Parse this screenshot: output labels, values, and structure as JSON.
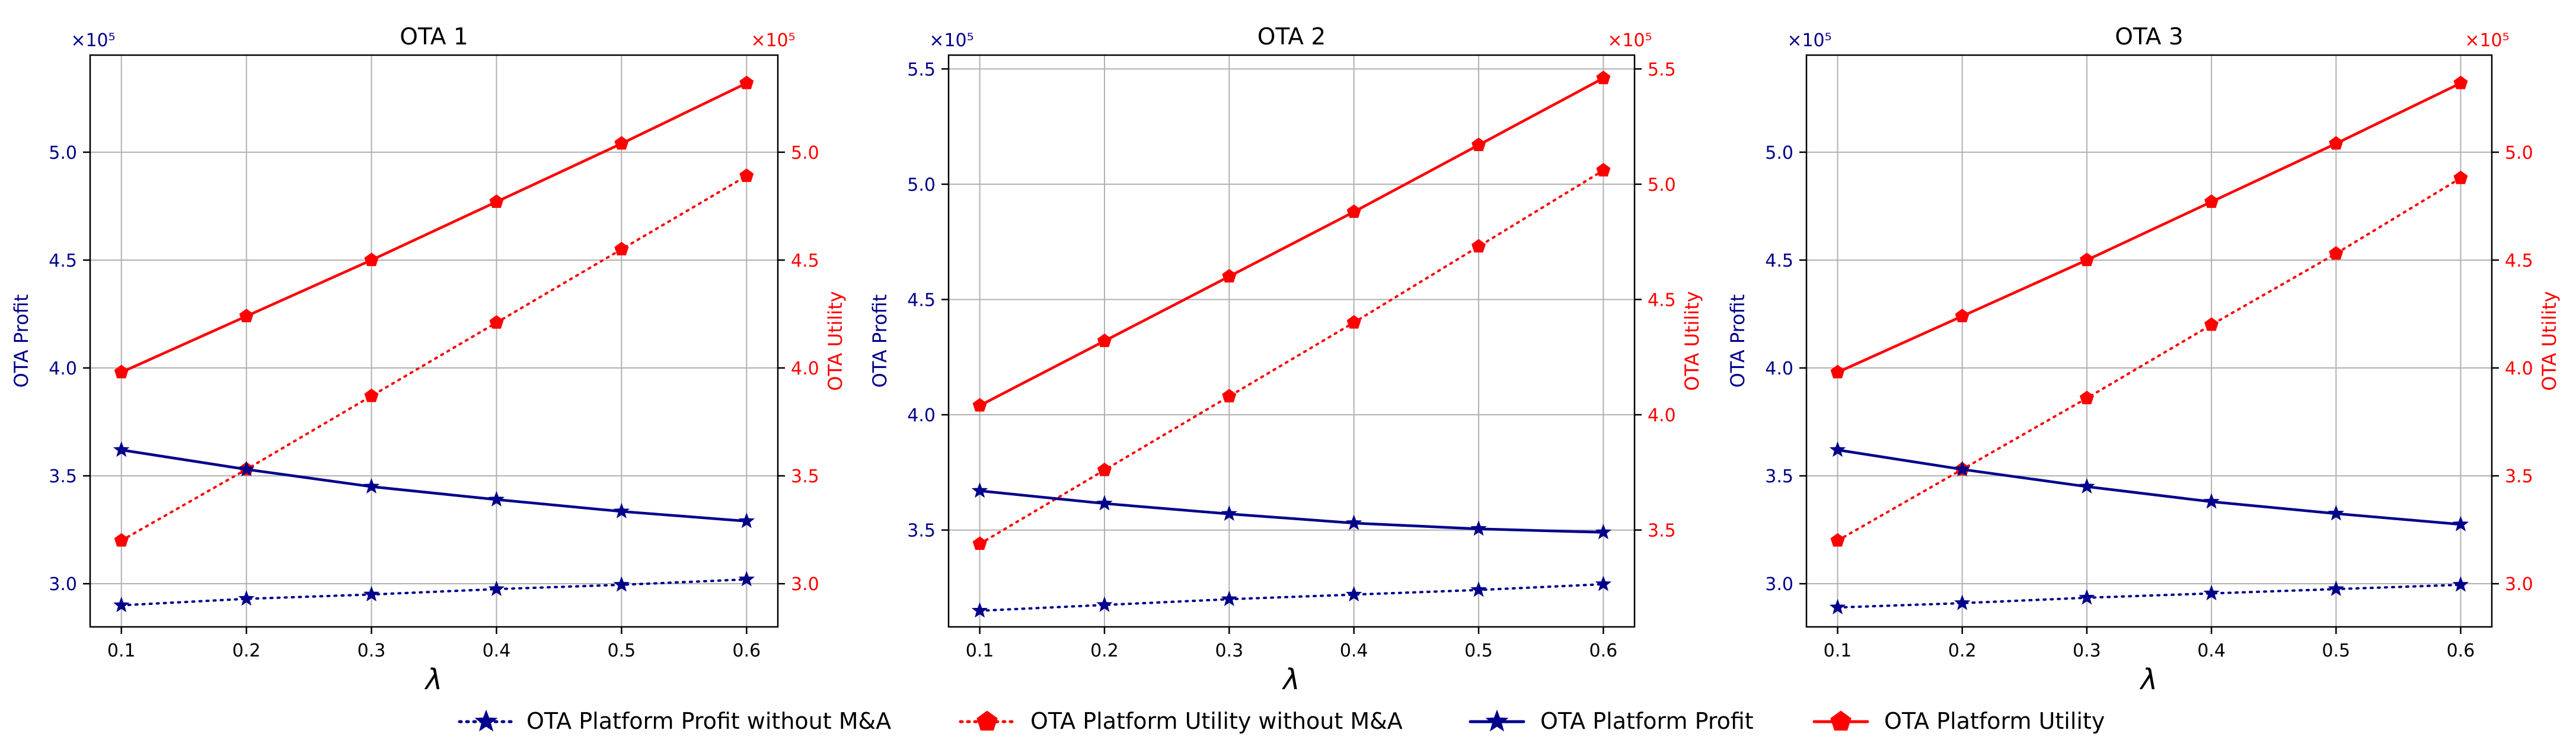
{
  "colors": {
    "profit": "#00008b",
    "utility": "#ff0000",
    "grid": "#b0b0b0",
    "axis": "#000000"
  },
  "legend_entries": [
    {
      "series": "profit_without",
      "label": "OTA Platform Profit without M&A"
    },
    {
      "series": "utility_without",
      "label": "OTA Platform Utility without M&A"
    },
    {
      "series": "profit",
      "label": "OTA Platform Profit"
    },
    {
      "series": "utility",
      "label": "OTA Platform Utility"
    }
  ],
  "chart_data": [
    {
      "type": "line",
      "title": "OTA 1",
      "xlabel": "λ",
      "ylabel_left": "OTA Profit",
      "ylabel_right": "OTA Utility",
      "left_multiplier": "×10⁵",
      "right_multiplier": "×10⁵",
      "x": [
        0.1,
        0.2,
        0.3,
        0.4,
        0.5,
        0.6
      ],
      "x_ticks": [
        0.1,
        0.2,
        0.3,
        0.4,
        0.5,
        0.6
      ],
      "xlim": [
        0.075,
        0.625
      ],
      "ylim_left": [
        2.8,
        5.45
      ],
      "ylim_right": [
        2.8,
        5.45
      ],
      "yticks_left": [
        3.0,
        3.5,
        4.0,
        4.5,
        5.0
      ],
      "yticks_right": [
        3.0,
        3.5,
        4.0,
        4.5,
        5.0
      ],
      "series": [
        {
          "key": "profit_without",
          "name": "OTA Platform Profit without M&A",
          "axis": "left",
          "values": [
            2.9,
            2.93,
            2.95,
            2.975,
            2.995,
            3.02
          ]
        },
        {
          "key": "utility_without",
          "name": "OTA Platform Utility without M&A",
          "axis": "right",
          "values": [
            3.2,
            3.53,
            3.87,
            4.21,
            4.55,
            4.89
          ]
        },
        {
          "key": "profit",
          "name": "OTA Platform Profit",
          "axis": "left",
          "values": [
            3.62,
            3.53,
            3.45,
            3.39,
            3.335,
            3.29
          ]
        },
        {
          "key": "utility",
          "name": "OTA Platform Utility",
          "axis": "right",
          "values": [
            3.98,
            4.24,
            4.5,
            4.77,
            5.04,
            5.32
          ]
        }
      ]
    },
    {
      "type": "line",
      "title": "OTA 2",
      "xlabel": "λ",
      "ylabel_left": "OTA Profit",
      "ylabel_right": "OTA Utility",
      "left_multiplier": "×10⁵",
      "right_multiplier": "×10⁵",
      "x": [
        0.1,
        0.2,
        0.3,
        0.4,
        0.5,
        0.6
      ],
      "x_ticks": [
        0.1,
        0.2,
        0.3,
        0.4,
        0.5,
        0.6
      ],
      "xlim": [
        0.075,
        0.625
      ],
      "ylim_left": [
        3.08,
        5.56
      ],
      "ylim_right": [
        3.08,
        5.56
      ],
      "yticks_left": [
        3.5,
        4.0,
        4.5,
        5.0,
        5.5
      ],
      "yticks_right": [
        3.5,
        4.0,
        4.5,
        5.0,
        5.5
      ],
      "series": [
        {
          "key": "profit_without",
          "name": "OTA Platform Profit without M&A",
          "axis": "left",
          "values": [
            3.15,
            3.175,
            3.2,
            3.22,
            3.24,
            3.265
          ]
        },
        {
          "key": "utility_without",
          "name": "OTA Platform Utility without M&A",
          "axis": "right",
          "values": [
            3.44,
            3.76,
            4.08,
            4.4,
            4.73,
            5.06
          ]
        },
        {
          "key": "profit",
          "name": "OTA Platform Profit",
          "axis": "left",
          "values": [
            3.67,
            3.615,
            3.57,
            3.53,
            3.505,
            3.49
          ]
        },
        {
          "key": "utility",
          "name": "OTA Platform Utility",
          "axis": "right",
          "values": [
            4.04,
            4.32,
            4.6,
            4.88,
            5.17,
            5.46
          ]
        }
      ]
    },
    {
      "type": "line",
      "title": "OTA 3",
      "xlabel": "λ",
      "ylabel_left": "OTA Profit",
      "ylabel_right": "OTA Utility",
      "left_multiplier": "×10⁵",
      "right_multiplier": "×10⁵",
      "x": [
        0.1,
        0.2,
        0.3,
        0.4,
        0.5,
        0.6
      ],
      "x_ticks": [
        0.1,
        0.2,
        0.3,
        0.4,
        0.5,
        0.6
      ],
      "xlim": [
        0.075,
        0.625
      ],
      "ylim_left": [
        2.8,
        5.45
      ],
      "ylim_right": [
        2.8,
        5.45
      ],
      "yticks_left": [
        3.0,
        3.5,
        4.0,
        4.5,
        5.0
      ],
      "yticks_right": [
        3.0,
        3.5,
        4.0,
        4.5,
        5.0
      ],
      "series": [
        {
          "key": "profit_without",
          "name": "OTA Platform Profit without M&A",
          "axis": "left",
          "values": [
            2.89,
            2.91,
            2.935,
            2.955,
            2.975,
            2.995
          ]
        },
        {
          "key": "utility_without",
          "name": "OTA Platform Utility without M&A",
          "axis": "right",
          "values": [
            3.2,
            3.53,
            3.86,
            4.2,
            4.53,
            4.88
          ]
        },
        {
          "key": "profit",
          "name": "OTA Platform Profit",
          "axis": "left",
          "values": [
            3.62,
            3.53,
            3.45,
            3.38,
            3.325,
            3.275
          ]
        },
        {
          "key": "utility",
          "name": "OTA Platform Utility",
          "axis": "right",
          "values": [
            3.98,
            4.24,
            4.5,
            4.77,
            5.04,
            5.32
          ]
        }
      ]
    }
  ]
}
